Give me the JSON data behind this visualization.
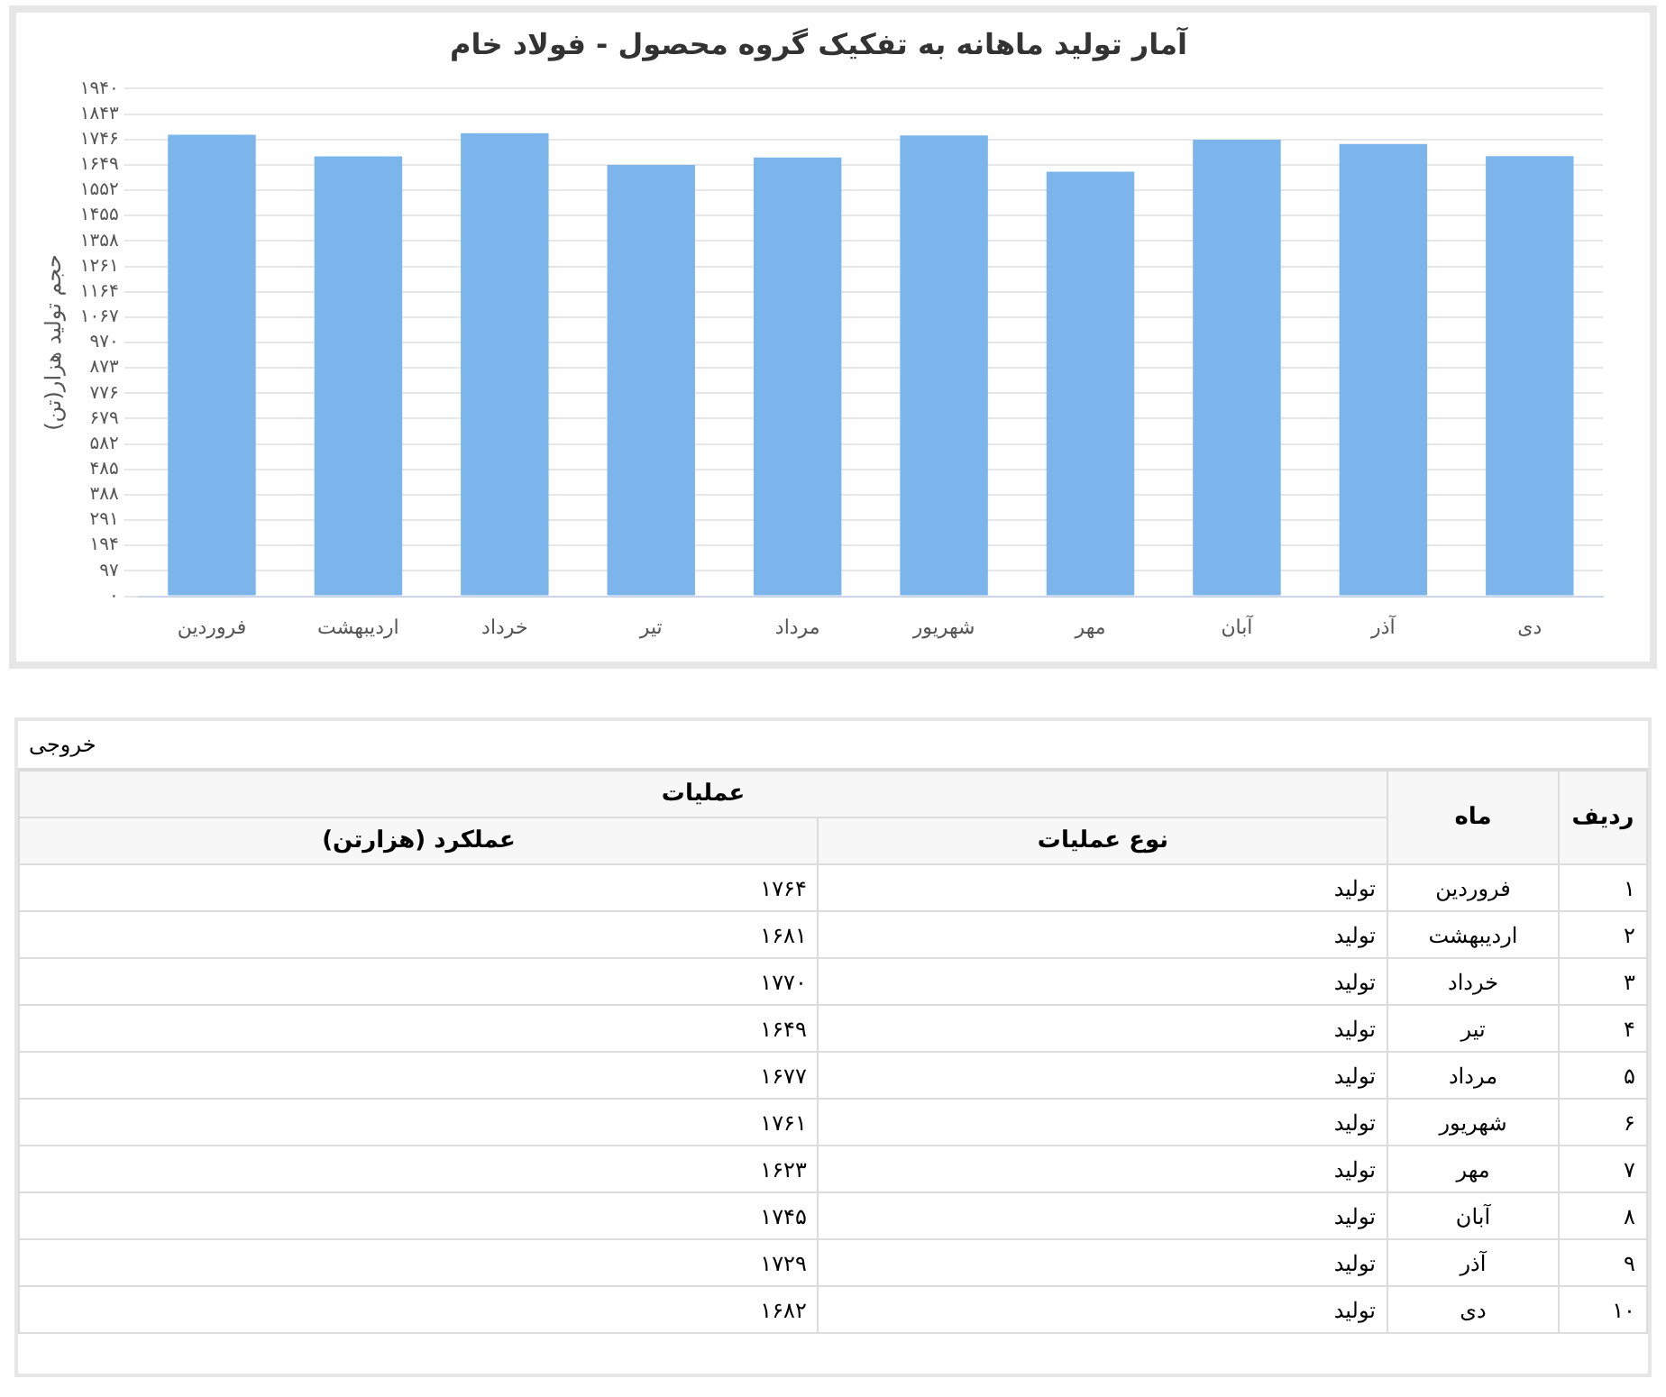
{
  "chart_data": {
    "type": "bar",
    "title": "آمار تولید ماهانه به تفکیک گروه محصول - فولاد خام",
    "ylabel": "حجم تولید هزار(تن)",
    "categories": [
      "فروردین",
      "اردیبهشت",
      "خرداد",
      "تیر",
      "مرداد",
      "شهریور",
      "مهر",
      "آبان",
      "آذر",
      "دی"
    ],
    "values": [
      1764,
      1681,
      1770,
      1649,
      1677,
      1761,
      1623,
      1745,
      1729,
      1682
    ],
    "color": "#7cb5ec",
    "ylim": [
      0,
      1940
    ],
    "yticks": [
      {
        "value": 0,
        "label": "۰"
      },
      {
        "value": 97,
        "label": "۹۷"
      },
      {
        "value": 194,
        "label": "۱۹۴"
      },
      {
        "value": 291,
        "label": "۲۹۱"
      },
      {
        "value": 388,
        "label": "۳۸۸"
      },
      {
        "value": 485,
        "label": "۴۸۵"
      },
      {
        "value": 582,
        "label": "۵۸۲"
      },
      {
        "value": 679,
        "label": "۶۷۹"
      },
      {
        "value": 776,
        "label": "۷۷۶"
      },
      {
        "value": 873,
        "label": "۸۷۳"
      },
      {
        "value": 970,
        "label": "۹۷۰"
      },
      {
        "value": 1067,
        "label": "۱۰۶۷"
      },
      {
        "value": 1164,
        "label": "۱۱۶۴"
      },
      {
        "value": 1261,
        "label": "۱۲۶۱"
      },
      {
        "value": 1358,
        "label": "۱۳۵۸"
      },
      {
        "value": 1455,
        "label": "۱۴۵۵"
      },
      {
        "value": 1552,
        "label": "۱۵۵۲"
      },
      {
        "value": 1649,
        "label": "۱۶۴۹"
      },
      {
        "value": 1746,
        "label": "۱۷۴۶"
      },
      {
        "value": 1843,
        "label": "۱۸۴۳"
      },
      {
        "value": 1940,
        "label": "۱۹۴۰"
      }
    ],
    "grid": "y",
    "legend": false,
    "annotations": [
      "خروجی",
      "ردیف",
      "ماه",
      "عملیات",
      "نوع عملیات",
      "عملکرد (هزارتن)",
      "تولید",
      "۱",
      "۲",
      "۳",
      "۴",
      "۵",
      "۶",
      "۷",
      "۸",
      "۹",
      "۱۰",
      "۱۷۶۴",
      "۱۶۸۱",
      "۱۷۷۰",
      "۱۶۴۹",
      "۱۶۷۷",
      "۱۷۶۱",
      "۱۶۲۳",
      "۱۷۴۵",
      "۱۷۲۹",
      "۱۶۸۲"
    ]
  }
}
